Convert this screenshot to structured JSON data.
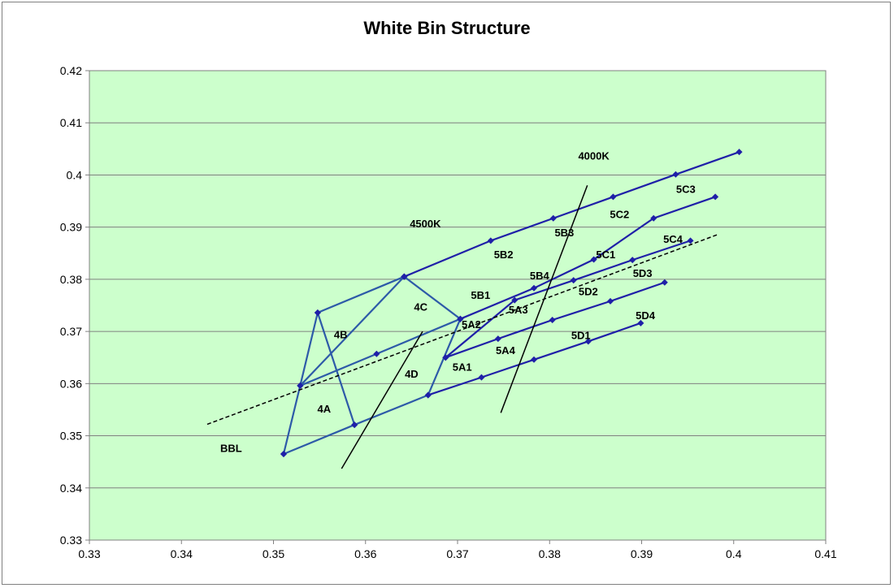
{
  "chart_data": {
    "type": "scatter",
    "title": "White Bin Structure",
    "xlim": [
      0.33,
      0.41
    ],
    "ylim": [
      0.33,
      0.42
    ],
    "x_ticks": [
      "0.33",
      "0.34",
      "0.35",
      "0.36",
      "0.37",
      "0.38",
      "0.39",
      "0.4",
      "0.41"
    ],
    "y_ticks": [
      "0.33",
      "0.34",
      "0.35",
      "0.36",
      "0.37",
      "0.38",
      "0.39",
      "0.4",
      "0.41",
      "0.42"
    ],
    "grid": "horizontal",
    "colors": {
      "plot_bg": "#ccffcc",
      "bins": "#1f1fa8",
      "bins_4": "#2d5aa8",
      "grid": "#808080"
    },
    "bin_polygons": [
      {
        "x": [
          0.3511,
          0.3529,
          0.3548,
          0.3588
        ],
        "y": [
          0.3465,
          0.3596,
          0.3736,
          0.3521
        ]
      },
      {
        "x": [
          0.3529,
          0.3642,
          0.3642,
          0.3548
        ],
        "y": [
          0.3596,
          0.3805,
          0.3805,
          0.3736
        ]
      },
      {
        "x": [
          0.3529,
          0.3612,
          0.3703,
          0.3642
        ],
        "y": [
          0.3596,
          0.3657,
          0.3724,
          0.3805
        ]
      },
      {
        "x": [
          0.3511,
          0.3588,
          0.3668,
          0.3703
        ],
        "y": [
          0.3465,
          0.3521,
          0.3578,
          0.3724
        ]
      },
      {
        "x": [
          0.3642,
          0.3736,
          0.3804,
          0.3869,
          0.3937,
          0.4006
        ],
        "y": [
          0.3805,
          0.3874,
          0.3917,
          0.3958,
          0.4001,
          0.4044
        ]
      },
      {
        "x": [
          0.3703,
          0.3783,
          0.3848,
          0.3913,
          0.398
        ],
        "y": [
          0.3724,
          0.3783,
          0.3838,
          0.3917,
          0.3958
        ]
      },
      {
        "x": [
          0.3687,
          0.3762,
          0.3826,
          0.389,
          0.3953
        ],
        "y": [
          0.365,
          0.376,
          0.3798,
          0.3837,
          0.3874
        ]
      },
      {
        "x": [
          0.3687,
          0.3744,
          0.3803,
          0.3866,
          0.3925
        ],
        "y": [
          0.365,
          0.3686,
          0.3722,
          0.3758,
          0.3794
        ]
      },
      {
        "x": [
          0.3668,
          0.3726,
          0.3783,
          0.3842,
          0.3899
        ],
        "y": [
          0.3578,
          0.3612,
          0.3646,
          0.3681,
          0.3716
        ]
      }
    ],
    "lines": [
      {
        "name": "BBL",
        "style": "dashed",
        "x": [
          0.3428,
          0.3983
        ],
        "y": [
          0.3522,
          0.3886
        ]
      },
      {
        "name": "4500K",
        "style": "solid",
        "x": [
          0.3574,
          0.3662
        ],
        "y": [
          0.3437,
          0.37
        ]
      },
      {
        "name": "4000K",
        "style": "solid",
        "x": [
          0.3747,
          0.3841
        ],
        "y": [
          0.3544,
          0.398
        ]
      }
    ],
    "bin_labels": [
      {
        "text": "4A",
        "x": 0.3555,
        "y": 0.355
      },
      {
        "text": "4B",
        "x": 0.3573,
        "y": 0.3692
      },
      {
        "text": "4C",
        "x": 0.366,
        "y": 0.3745
      },
      {
        "text": "4D",
        "x": 0.365,
        "y": 0.3617
      },
      {
        "text": "5A1",
        "x": 0.3705,
        "y": 0.363
      },
      {
        "text": "5A2",
        "x": 0.3715,
        "y": 0.3712
      },
      {
        "text": "5A3",
        "x": 0.3766,
        "y": 0.374
      },
      {
        "text": "5A4",
        "x": 0.3752,
        "y": 0.3662
      },
      {
        "text": "5B1",
        "x": 0.3725,
        "y": 0.3768
      },
      {
        "text": "5B2",
        "x": 0.375,
        "y": 0.3846
      },
      {
        "text": "5B3",
        "x": 0.3816,
        "y": 0.3888
      },
      {
        "text": "5B4",
        "x": 0.3789,
        "y": 0.3805
      },
      {
        "text": "5C1",
        "x": 0.3861,
        "y": 0.3846
      },
      {
        "text": "5C2",
        "x": 0.3876,
        "y": 0.3923
      },
      {
        "text": "5C3",
        "x": 0.3948,
        "y": 0.3971
      },
      {
        "text": "5C4",
        "x": 0.3934,
        "y": 0.3875
      },
      {
        "text": "5D1",
        "x": 0.3834,
        "y": 0.3691
      },
      {
        "text": "5D2",
        "x": 0.3842,
        "y": 0.3775
      },
      {
        "text": "5D3",
        "x": 0.3901,
        "y": 0.381
      },
      {
        "text": "5D4",
        "x": 0.3904,
        "y": 0.3729
      },
      {
        "text": "4500K",
        "x": 0.3665,
        "y": 0.3905
      },
      {
        "text": "4000K",
        "x": 0.3848,
        "y": 0.4035
      },
      {
        "text": "BBL",
        "x": 0.3454,
        "y": 0.3474
      }
    ]
  }
}
